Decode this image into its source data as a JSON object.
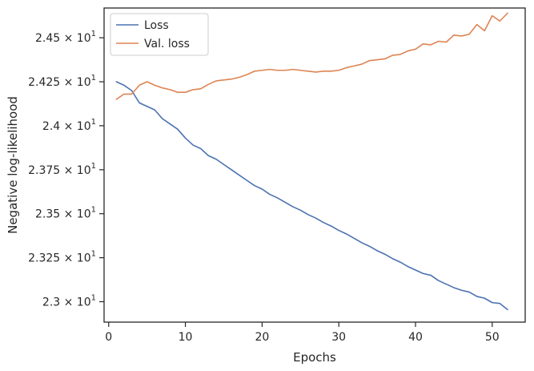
{
  "chart_data": {
    "type": "line",
    "title": "",
    "xlabel": "Epochs",
    "ylabel": "Negative log-likelihood",
    "xlim": [
      -0.6,
      54.3
    ],
    "ylim": [
      22.884,
      24.669
    ],
    "x_ticks": [
      0,
      10,
      20,
      30,
      40,
      50
    ],
    "x_tick_labels": [
      "0",
      "10",
      "20",
      "30",
      "40",
      "50"
    ],
    "y_ticks": [
      23.0,
      23.25,
      23.5,
      23.75,
      24.0,
      24.25,
      24.5
    ],
    "y_tick_mantissas": [
      "2.3",
      "2.325",
      "2.35",
      "2.375",
      "2.4",
      "2.425",
      "2.45"
    ],
    "y_tick_multiplier": "× 10",
    "y_tick_exponent": "1",
    "grid": false,
    "legend_position": "top-left",
    "series": [
      {
        "name": "Loss",
        "color": "#4c72b0",
        "x": [
          1,
          2,
          3,
          4,
          5,
          6,
          7,
          8,
          9,
          10,
          11,
          12,
          13,
          14,
          15,
          16,
          17,
          18,
          19,
          20,
          21,
          22,
          23,
          24,
          25,
          26,
          27,
          28,
          29,
          30,
          31,
          32,
          33,
          34,
          35,
          36,
          37,
          38,
          39,
          40,
          41,
          42,
          43,
          44,
          45,
          46,
          47,
          48,
          49,
          50,
          51,
          52
        ],
        "values": [
          24.25,
          24.23,
          24.2,
          24.13,
          24.11,
          24.09,
          24.04,
          24.01,
          23.98,
          23.93,
          23.89,
          23.87,
          23.83,
          23.81,
          23.78,
          23.75,
          23.72,
          23.69,
          23.66,
          23.64,
          23.61,
          23.59,
          23.565,
          23.54,
          23.52,
          23.495,
          23.475,
          23.45,
          23.43,
          23.405,
          23.385,
          23.36,
          23.335,
          23.315,
          23.29,
          23.27,
          23.245,
          23.225,
          23.2,
          23.18,
          23.16,
          23.15,
          23.12,
          23.1,
          23.08,
          23.065,
          23.055,
          23.03,
          23.02,
          22.995,
          22.99,
          22.955
        ]
      },
      {
        "name": "Val. loss",
        "color": "#dd8452",
        "x": [
          1,
          2,
          3,
          4,
          5,
          6,
          7,
          8,
          9,
          10,
          11,
          12,
          13,
          14,
          15,
          16,
          17,
          18,
          19,
          20,
          21,
          22,
          23,
          24,
          25,
          26,
          27,
          28,
          29,
          30,
          31,
          32,
          33,
          34,
          35,
          36,
          37,
          38,
          39,
          40,
          41,
          42,
          43,
          44,
          45,
          46,
          47,
          48,
          49,
          50,
          51,
          52
        ],
        "values": [
          24.15,
          24.18,
          24.18,
          24.23,
          24.25,
          24.23,
          24.215,
          24.205,
          24.19,
          24.19,
          24.205,
          24.21,
          24.235,
          24.255,
          24.26,
          24.265,
          24.275,
          24.29,
          24.31,
          24.315,
          24.32,
          24.315,
          24.315,
          24.32,
          24.315,
          24.31,
          24.305,
          24.31,
          24.31,
          24.315,
          24.33,
          24.34,
          24.35,
          24.37,
          24.375,
          24.38,
          24.4,
          24.405,
          24.425,
          24.435,
          24.465,
          24.46,
          24.48,
          24.475,
          24.515,
          24.51,
          24.52,
          24.575,
          24.54,
          24.625,
          24.595,
          24.64
        ]
      }
    ]
  }
}
